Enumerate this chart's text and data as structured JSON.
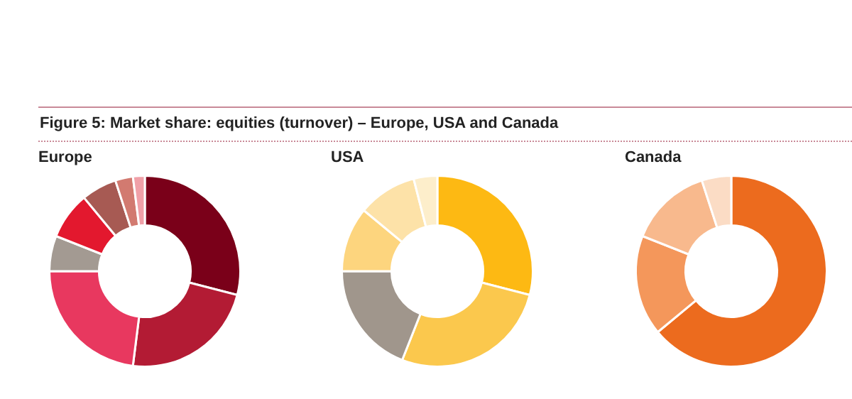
{
  "chart_data": [
    {
      "type": "donut",
      "title": "Europe",
      "annotations": [
        "Figure 5: Market share: equities (turnover) – Europe, USA and Canada"
      ],
      "categories": [
        null,
        null,
        null,
        null,
        null,
        null,
        null,
        null
      ],
      "values": [
        29,
        23,
        23,
        6,
        8,
        6,
        3,
        2
      ],
      "colors": [
        "#7a0019",
        "#b31b34",
        "#e8385f",
        "#a39a92",
        "#e3182e",
        "#a75a53",
        "#d27a70",
        "#f0a0a8"
      ],
      "legend": false
    },
    {
      "type": "donut",
      "title": "USA",
      "categories": [
        null,
        null,
        null,
        null,
        null,
        null
      ],
      "values": [
        29,
        27,
        19,
        11,
        10,
        4
      ],
      "colors": [
        "#fdb913",
        "#fbc84d",
        "#a0968c",
        "#fdd57e",
        "#fde2a8",
        "#fdeecb"
      ],
      "legend": false
    },
    {
      "type": "donut",
      "title": "Canada",
      "categories": [
        null,
        null,
        null,
        null
      ],
      "values": [
        64,
        17,
        14,
        5
      ],
      "colors": [
        "#ec6b1e",
        "#f4975b",
        "#f8b98d",
        "#fbdcc5"
      ],
      "legend": false
    }
  ]
}
